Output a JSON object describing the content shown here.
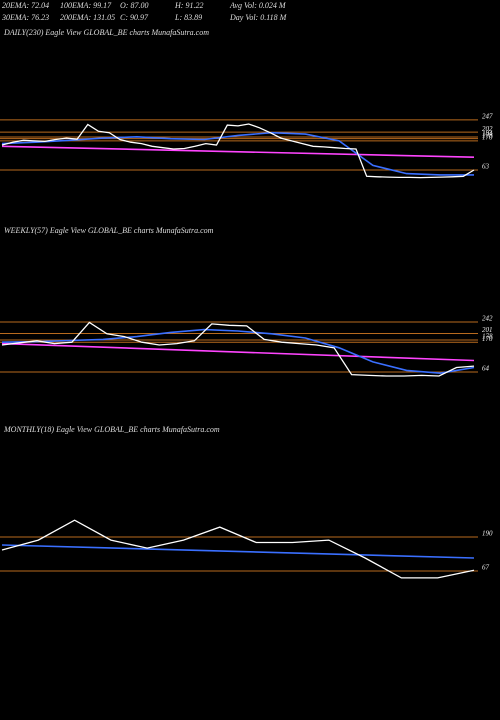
{
  "header": {
    "stats": [
      "20EMA: 72.04",
      "100EMA: 99.17",
      "O: 87.00",
      "H: 91.22",
      "Avg Vol: 0.024  M",
      "30EMA: 76.23",
      "200EMA: 131.05",
      "C: 90.97",
      "L: 83.89",
      "Day Vol: 0.118  M"
    ]
  },
  "chart_data": [
    {
      "type": "line",
      "title": "DAILY(230) Eagle  View  GLOBAL_BE charts MunafaSutra.com",
      "ylim": [
        8,
        320
      ],
      "yticks": [
        247,
        202,
        184,
        178,
        170,
        63
      ],
      "level_color": "#b86a1e",
      "series": [
        {
          "color": "#ff44ff",
          "values": [
            150,
            110
          ]
        },
        {
          "color": "#3a6fff",
          "values": [
            160,
            165,
            172,
            180,
            185,
            178,
            175,
            190,
            200,
            195,
            170,
            80,
            50,
            45,
            45
          ]
        },
        {
          "color": "#ffffff",
          "values": [
            155,
            165,
            172,
            170,
            168,
            175,
            180,
            176,
            230,
            205,
            200,
            175,
            165,
            160,
            150,
            145,
            140,
            142,
            150,
            160,
            155,
            228,
            225,
            232,
            218,
            200,
            180,
            170,
            160,
            150,
            148,
            145,
            142,
            140,
            40,
            38,
            37,
            36,
            36,
            35,
            36,
            37,
            38,
            40,
            63
          ]
        }
      ]
    },
    {
      "type": "line",
      "title": "WEEKLY(57) Eagle  View  GLOBAL_BE charts MunafaSutra.com",
      "ylim": [
        18,
        320
      ],
      "yticks": [
        242,
        201,
        178,
        170,
        64
      ],
      "level_color": "#b86a1e",
      "series": [
        {
          "color": "#ff44ff",
          "values": [
            165,
            105
          ]
        },
        {
          "color": "#3a6fff",
          "values": [
            170,
            172,
            176,
            180,
            190,
            205,
            215,
            210,
            200,
            185,
            150,
            100,
            70,
            60,
            80
          ]
        },
        {
          "color": "#ffffff",
          "values": [
            160,
            168,
            175,
            165,
            170,
            240,
            200,
            190,
            170,
            160,
            165,
            175,
            235,
            230,
            228,
            180,
            170,
            165,
            160,
            150,
            55,
            52,
            50,
            50,
            52,
            50,
            80,
            85
          ]
        }
      ]
    },
    {
      "type": "line",
      "title": "MONTHLY(18) Eagle  View  GLOBAL_BE charts MunafaSutra.com",
      "ylim": [
        0,
        324
      ],
      "yticks": [
        190,
        67
      ],
      "level_color": "#b86a1e",
      "series": [
        {
          "color": "#3a6fff",
          "values": [
            161,
            114
          ]
        },
        {
          "color": "#ffffff",
          "values": [
            143,
            179,
            251,
            179,
            150,
            179,
            226,
            170,
            170,
            179,
            114,
            42,
            42,
            70
          ]
        }
      ]
    }
  ]
}
